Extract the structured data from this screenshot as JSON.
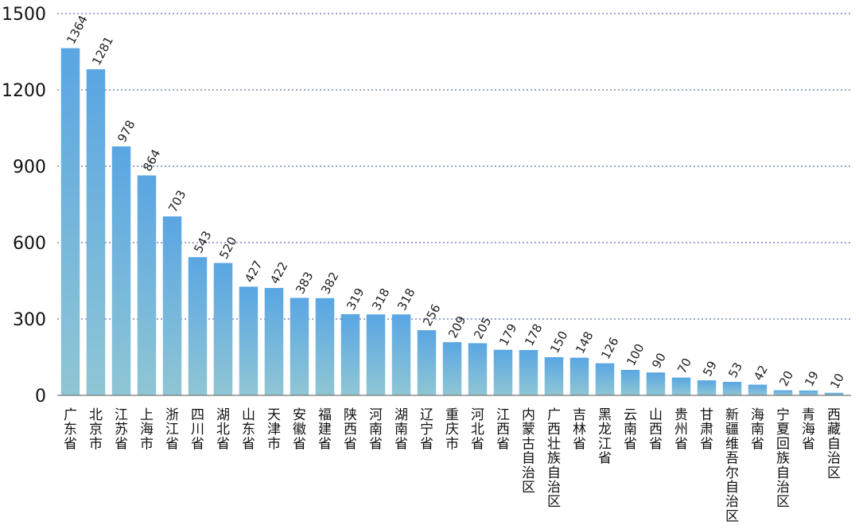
{
  "chart_data": {
    "type": "bar",
    "categories": [
      "广东省",
      "北京市",
      "江苏省",
      "上海市",
      "浙江省",
      "四川省",
      "湖北省",
      "山东省",
      "天津市",
      "安徽省",
      "福建省",
      "陕西省",
      "河南省",
      "湖南省",
      "辽宁省",
      "重庆市",
      "河北省",
      "江西省",
      "内蒙古自治区",
      "广西壮族自治区",
      "吉林省",
      "黑龙江省",
      "云南省",
      "山西省",
      "贵州省",
      "甘肃省",
      "新疆维吾尔自治区",
      "海南省",
      "宁夏回族自治区",
      "青海省",
      "西藏自治区"
    ],
    "values": [
      1364,
      1281,
      978,
      864,
      703,
      543,
      520,
      427,
      422,
      383,
      382,
      319,
      318,
      318,
      256,
      209,
      205,
      179,
      178,
      150,
      148,
      126,
      100,
      90,
      70,
      59,
      53,
      42,
      20,
      19,
      10
    ],
    "ylim": [
      0,
      1500
    ],
    "yticks": [
      0,
      300,
      600,
      900,
      1200,
      1500
    ],
    "grid": true,
    "colors": {
      "bar_top": "#5aa6e3",
      "bar_bottom": "#8fc6d4",
      "grid": "#3a4a9a"
    }
  }
}
